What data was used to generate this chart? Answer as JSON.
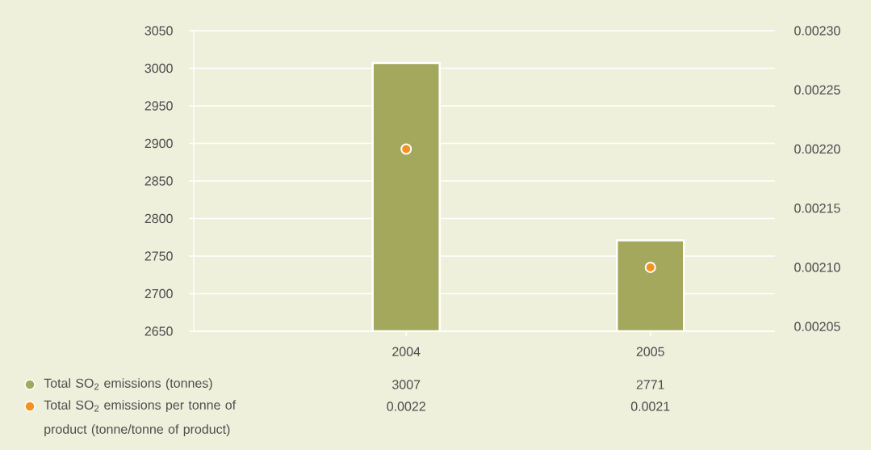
{
  "chart_data": {
    "type": "bar",
    "categories": [
      "2004",
      "2005"
    ],
    "series": [
      {
        "name": "Total SO$_{2}$ emissions (tonnes)",
        "color": "#a3a85c",
        "values": [
          3007,
          2771
        ]
      },
      {
        "name": "Total SO$_{2}$ emissions per tonne of product (tonne/tonne of product)",
        "type": "scatter",
        "axis": "y2",
        "marker": "circle",
        "color": "#f39220",
        "values": [
          0.0022,
          0.0021
        ]
      }
    ],
    "ylim": [
      2650,
      3050
    ],
    "yticks": [
      2650,
      2700,
      2750,
      2800,
      2850,
      2900,
      2950,
      3000,
      3050
    ],
    "y2lim": [
      0.002046,
      0.0023
    ],
    "y2ticks": [
      0.00205,
      {
        "value": 0.0021,
        "label": "0.00210"
      },
      0.00215,
      {
        "value": 0.0022,
        "label": "0.00220"
      },
      0.00225,
      {
        "value": 0.0023,
        "label": "0.00230"
      }
    ],
    "grid": "y",
    "legend": "bottom left",
    "data_labels": true
  }
}
